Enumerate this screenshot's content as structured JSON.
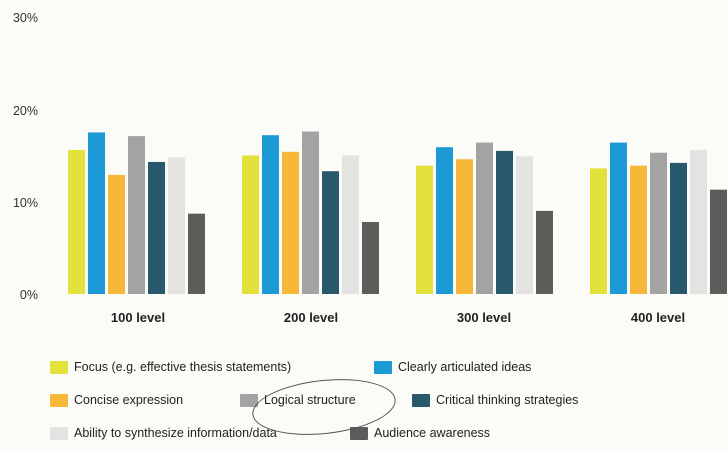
{
  "chart_data": {
    "type": "bar",
    "title": "",
    "xlabel": "",
    "ylabel": "",
    "ylim": [
      0,
      30
    ],
    "yticks": [
      "0%",
      "10%",
      "20%",
      "30%"
    ],
    "grid": false,
    "legend_position": "bottom",
    "categories": [
      "100 level",
      "200 level",
      "300 level",
      "400 level"
    ],
    "series": [
      {
        "name": "Focus (e.g. effective thesis statements)",
        "color": "#e3e23c",
        "values": [
          15.6,
          15.0,
          13.9,
          13.6
        ]
      },
      {
        "name": "Clearly articulated ideas",
        "color": "#1b9ad6",
        "values": [
          17.5,
          17.2,
          15.9,
          16.4
        ]
      },
      {
        "name": "Concise expression",
        "color": "#f7b83a",
        "values": [
          12.9,
          15.4,
          14.6,
          13.9
        ]
      },
      {
        "name": "Logical structure",
        "color": "#a2a3a2",
        "values": [
          17.1,
          17.6,
          16.4,
          15.3
        ]
      },
      {
        "name": "Critical thinking strategies",
        "color": "#28586b",
        "values": [
          14.3,
          13.3,
          15.5,
          14.2
        ]
      },
      {
        "name": "Ability to synthesize information/data",
        "color": "#e3e3e1",
        "values": [
          14.8,
          15.0,
          14.9,
          15.6
        ]
      },
      {
        "name": "Audience awareness",
        "color": "#5c5c5b",
        "values": [
          8.7,
          7.8,
          9.0,
          11.3
        ]
      }
    ]
  }
}
